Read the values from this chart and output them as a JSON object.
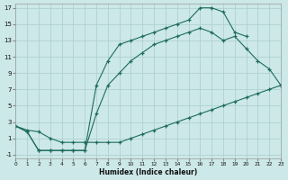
{
  "xlabel": "Humidex (Indice chaleur)",
  "bg_color": "#cce8e8",
  "grid_color": "#aacece",
  "line_color": "#1e6b60",
  "xlim": [
    0,
    23
  ],
  "ylim": [
    -1.5,
    17.5
  ],
  "xticks": [
    0,
    1,
    2,
    3,
    4,
    5,
    6,
    7,
    8,
    9,
    10,
    11,
    12,
    13,
    14,
    15,
    16,
    17,
    18,
    19,
    20,
    21,
    22,
    23
  ],
  "yticks": [
    -1,
    1,
    3,
    5,
    7,
    9,
    11,
    13,
    15,
    17
  ],
  "line_bottom_x": [
    0,
    1,
    2,
    3,
    4,
    5,
    6,
    7,
    8,
    9,
    10,
    11,
    12,
    13,
    14,
    15,
    16,
    17,
    18,
    19,
    20,
    21,
    22,
    23
  ],
  "line_bottom_y": [
    2.5,
    2.0,
    1.8,
    1.0,
    0.5,
    0.5,
    0.5,
    0.5,
    0.5,
    0.5,
    1.0,
    1.5,
    2.0,
    2.5,
    3.0,
    3.5,
    4.0,
    4.5,
    5.0,
    5.5,
    6.0,
    6.5,
    7.0,
    7.5
  ],
  "line_top_x": [
    0,
    1,
    2,
    3,
    4,
    5,
    6,
    7,
    8,
    9,
    10,
    11,
    12,
    13,
    14,
    15,
    16,
    17,
    18,
    19,
    20,
    21,
    22
  ],
  "line_top_y": [
    2.5,
    1.8,
    -0.5,
    -0.5,
    -0.5,
    -0.5,
    -0.5,
    7.5,
    10.5,
    12.5,
    13.0,
    13.5,
    14.0,
    14.5,
    15.0,
    15.5,
    17.0,
    17.0,
    16.5,
    14.0,
    13.5,
    null,
    null
  ],
  "line_mid_x": [
    0,
    1,
    2,
    3,
    4,
    5,
    6,
    7,
    8,
    9,
    10,
    11,
    12,
    13,
    14,
    15,
    16,
    17,
    18,
    19,
    20,
    21,
    22,
    23
  ],
  "line_mid_y": [
    2.5,
    1.8,
    -0.5,
    -0.5,
    -0.5,
    -0.5,
    -0.5,
    4.0,
    7.5,
    9.0,
    10.5,
    11.5,
    12.5,
    13.0,
    13.5,
    14.0,
    14.5,
    14.0,
    13.0,
    13.5,
    12.0,
    10.5,
    9.5,
    7.5
  ]
}
